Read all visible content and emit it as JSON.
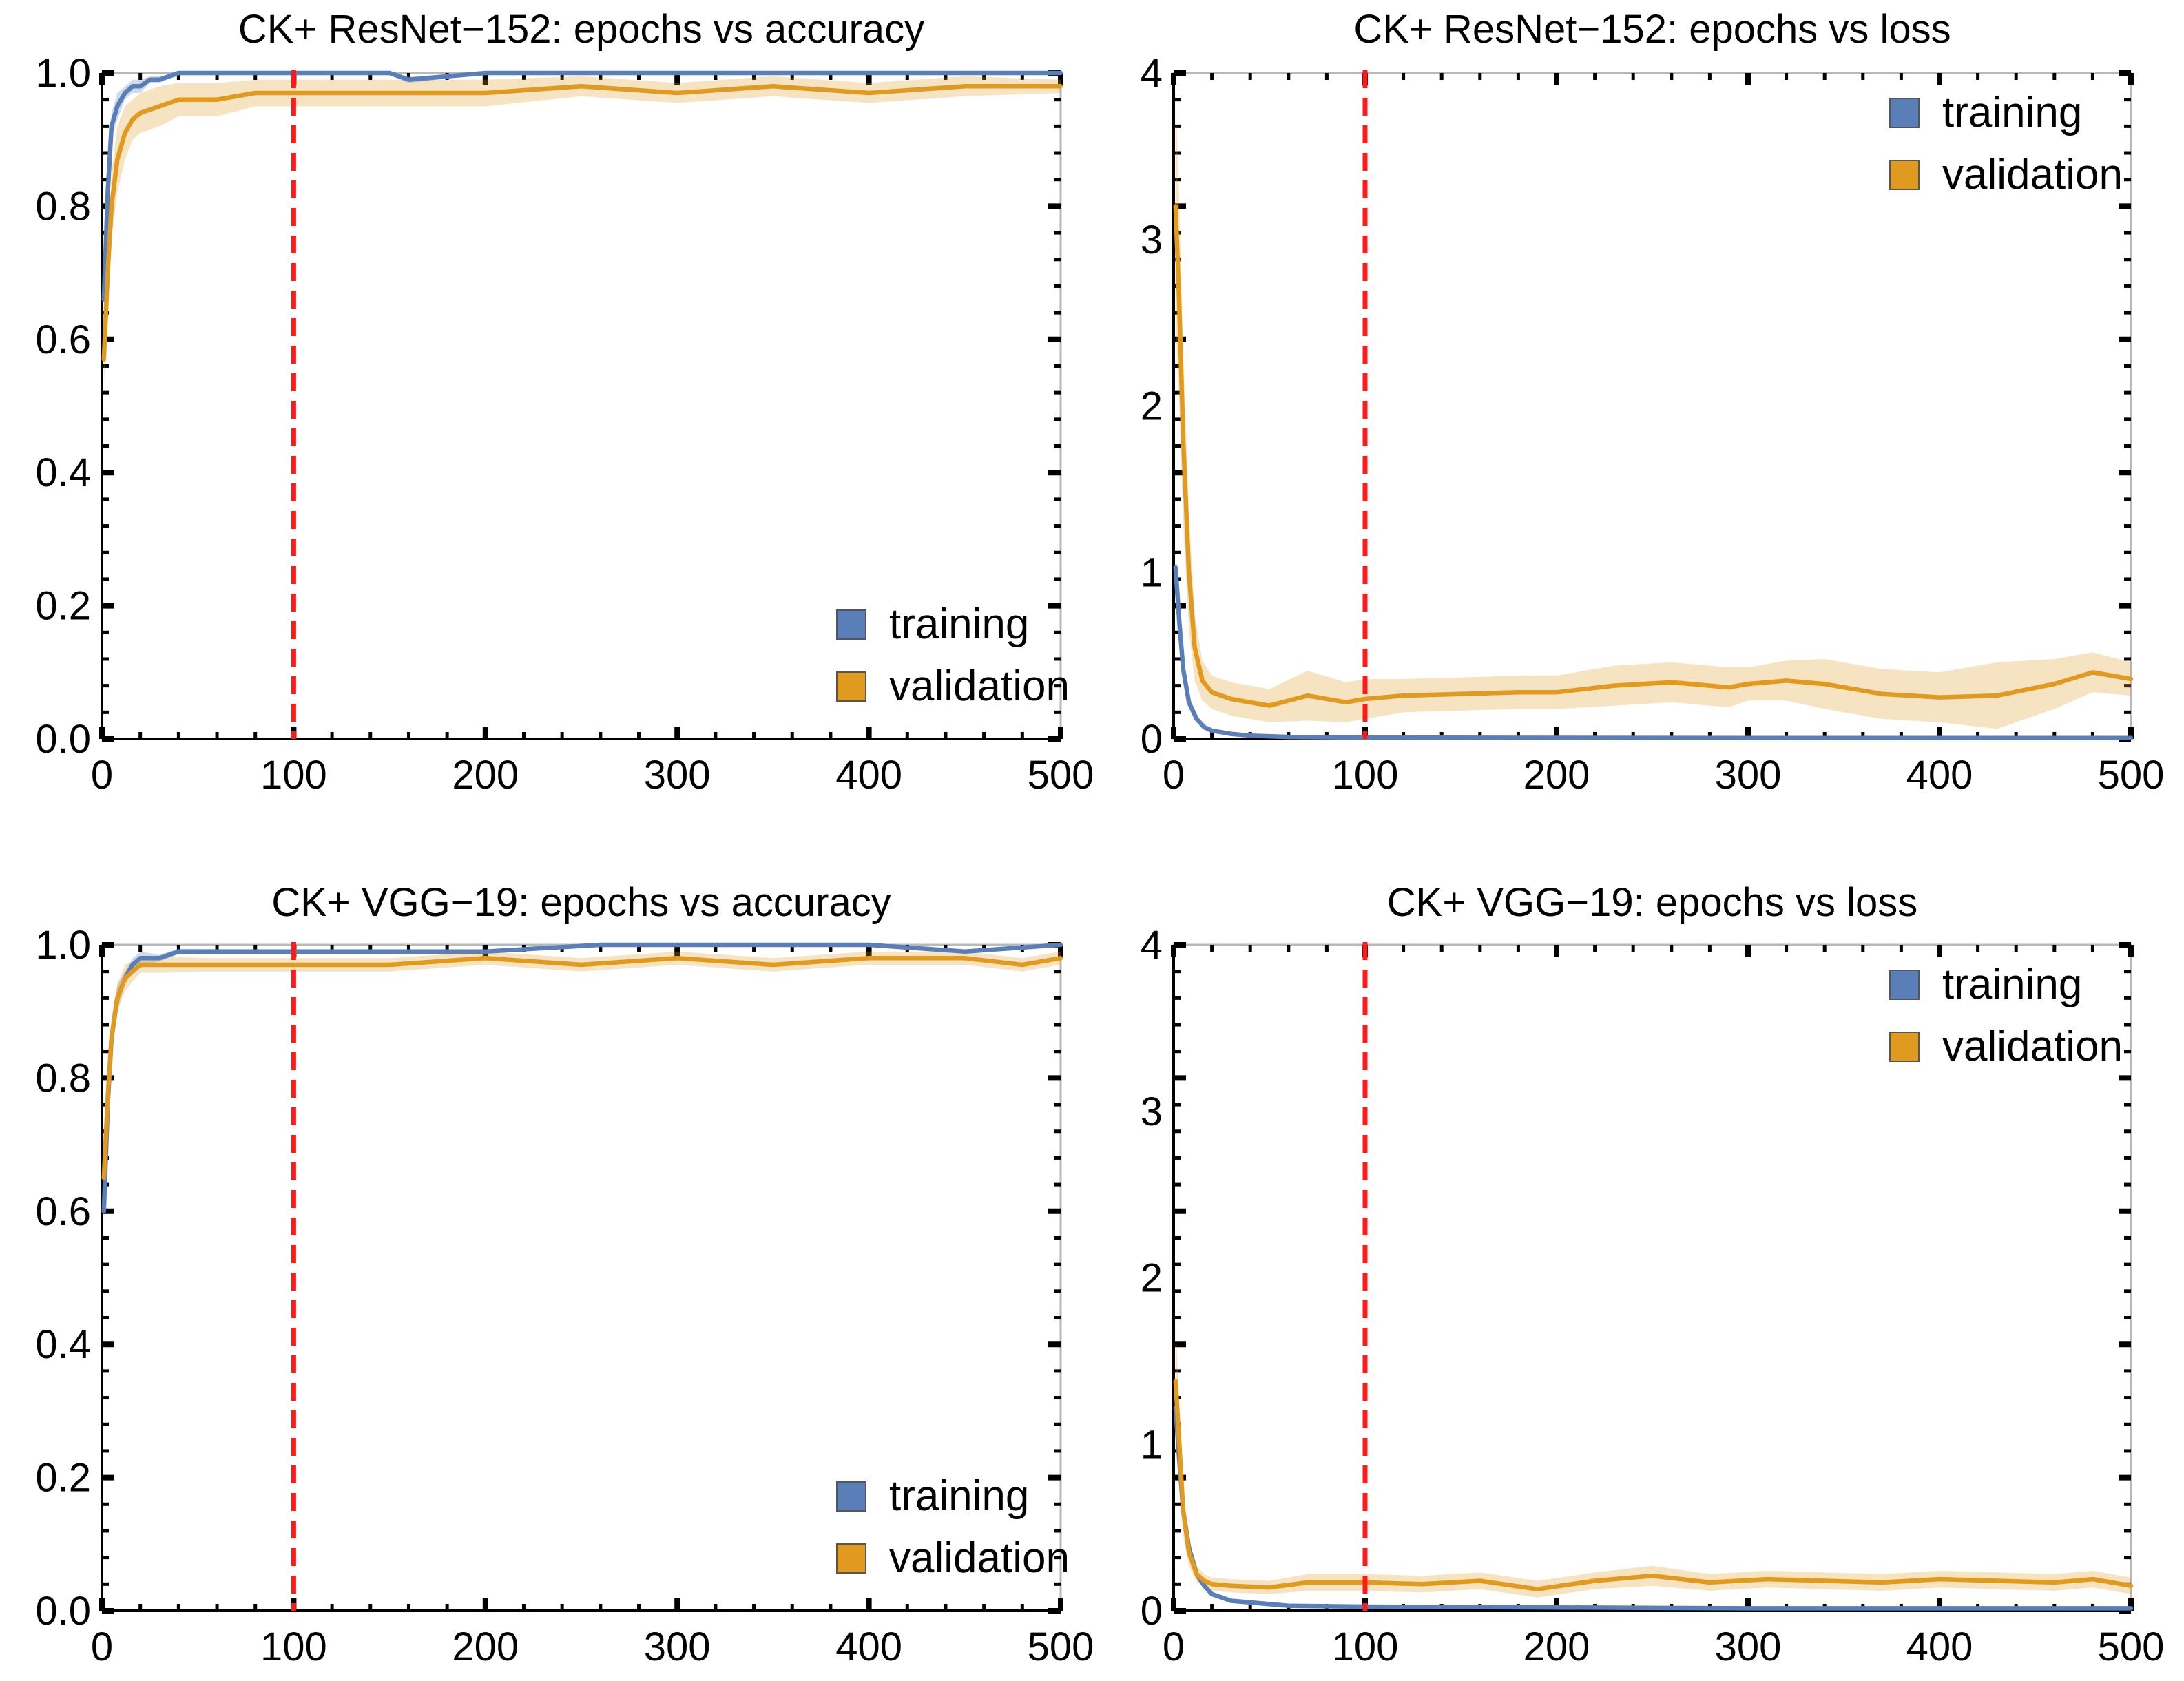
{
  "colors": {
    "training": "#5a7fb8",
    "validation": "#e09a20",
    "reference_line": "#ff1a1a"
  },
  "chart_data": [
    {
      "id": "resnet-accuracy",
      "type": "line",
      "title": "CK+ ResNet−152: epochs vs accuracy",
      "xlabel": "",
      "ylabel": "",
      "xlim": [
        0,
        500
      ],
      "ylim": [
        0,
        1
      ],
      "x_ticks": [
        0,
        100,
        200,
        300,
        400,
        500
      ],
      "y_ticks": [
        0.0,
        0.2,
        0.4,
        0.6,
        0.8,
        1.0
      ],
      "y_tick_labels": [
        "0.0",
        "0.2",
        "0.4",
        "0.6",
        "0.8",
        "1.0"
      ],
      "grid": false,
      "legend_position": "bottom-right",
      "vline_x": 100,
      "series": [
        {
          "name": "training",
          "color_key": "training",
          "x": [
            1,
            3,
            5,
            8,
            12,
            16,
            20,
            25,
            30,
            40,
            60,
            80,
            100,
            150,
            160,
            200,
            300,
            400,
            500
          ],
          "y": [
            0.66,
            0.82,
            0.92,
            0.95,
            0.97,
            0.98,
            0.98,
            0.99,
            0.99,
            1.0,
            1.0,
            1.0,
            1.0,
            1.0,
            0.99,
            1.0,
            1.0,
            1.0,
            1.0
          ],
          "band": [
            0.02,
            0.03,
            0.02,
            0.02,
            0.01,
            0.01,
            0.01,
            0.005,
            0.005,
            0.003,
            0.003,
            0.003,
            0.003,
            0.003,
            0.005,
            0.002,
            0.002,
            0.002,
            0.002
          ]
        },
        {
          "name": "validation",
          "color_key": "validation",
          "x": [
            1,
            3,
            5,
            8,
            12,
            16,
            20,
            30,
            40,
            60,
            80,
            100,
            130,
            160,
            200,
            250,
            300,
            350,
            400,
            450,
            500
          ],
          "y": [
            0.57,
            0.7,
            0.8,
            0.87,
            0.91,
            0.93,
            0.94,
            0.95,
            0.96,
            0.96,
            0.97,
            0.97,
            0.97,
            0.97,
            0.97,
            0.98,
            0.97,
            0.98,
            0.97,
            0.98,
            0.98
          ],
          "band": [
            0.04,
            0.05,
            0.05,
            0.05,
            0.04,
            0.03,
            0.03,
            0.03,
            0.025,
            0.025,
            0.02,
            0.02,
            0.02,
            0.02,
            0.02,
            0.015,
            0.015,
            0.015,
            0.015,
            0.015,
            0.01
          ]
        }
      ]
    },
    {
      "id": "resnet-loss",
      "type": "line",
      "title": "CK+ ResNet−152: epochs vs loss",
      "xlabel": "",
      "ylabel": "",
      "xlim": [
        0,
        500
      ],
      "ylim": [
        0,
        4
      ],
      "x_ticks": [
        0,
        100,
        200,
        300,
        400,
        500
      ],
      "y_ticks": [
        0,
        1,
        2,
        3,
        4
      ],
      "y_tick_labels": [
        "0",
        "1",
        "2",
        "3",
        "4"
      ],
      "grid": false,
      "legend_position": "top-right",
      "vline_x": 100,
      "series": [
        {
          "name": "training",
          "color_key": "training",
          "x": [
            1,
            3,
            5,
            8,
            12,
            16,
            20,
            30,
            40,
            60,
            100,
            200,
            300,
            400,
            500
          ],
          "y": [
            1.03,
            0.7,
            0.42,
            0.22,
            0.12,
            0.07,
            0.05,
            0.03,
            0.02,
            0.012,
            0.008,
            0.006,
            0.005,
            0.005,
            0.005
          ],
          "band": [
            0.04,
            0.04,
            0.04,
            0.03,
            0.02,
            0.01,
            0.01,
            0.005,
            0.005,
            0.003,
            0.003,
            0.002,
            0.002,
            0.002,
            0.002
          ]
        },
        {
          "name": "validation",
          "color_key": "validation",
          "x": [
            1,
            3,
            5,
            8,
            11,
            15,
            20,
            30,
            50,
            70,
            90,
            100,
            120,
            150,
            180,
            200,
            230,
            260,
            290,
            300,
            320,
            340,
            370,
            400,
            430,
            460,
            480,
            500
          ],
          "y": [
            3.2,
            2.6,
            1.8,
            1.0,
            0.55,
            0.35,
            0.28,
            0.24,
            0.2,
            0.26,
            0.22,
            0.24,
            0.26,
            0.27,
            0.28,
            0.28,
            0.32,
            0.34,
            0.31,
            0.33,
            0.35,
            0.33,
            0.27,
            0.25,
            0.26,
            0.33,
            0.4,
            0.36
          ],
          "band": [
            0.7,
            0.6,
            0.5,
            0.35,
            0.2,
            0.12,
            0.1,
            0.1,
            0.1,
            0.15,
            0.12,
            0.12,
            0.1,
            0.1,
            0.1,
            0.1,
            0.12,
            0.12,
            0.12,
            0.1,
            0.12,
            0.15,
            0.15,
            0.15,
            0.2,
            0.15,
            0.12,
            0.1
          ]
        }
      ]
    },
    {
      "id": "vgg-accuracy",
      "type": "line",
      "title": "CK+ VGG−19: epochs vs accuracy",
      "xlabel": "",
      "ylabel": "",
      "xlim": [
        0,
        500
      ],
      "ylim": [
        0,
        1
      ],
      "x_ticks": [
        0,
        100,
        200,
        300,
        400,
        500
      ],
      "y_ticks": [
        0.0,
        0.2,
        0.4,
        0.6,
        0.8,
        1.0
      ],
      "y_tick_labels": [
        "0.0",
        "0.2",
        "0.4",
        "0.6",
        "0.8",
        "1.0"
      ],
      "grid": false,
      "legend_position": "bottom-right",
      "vline_x": 100,
      "series": [
        {
          "name": "training",
          "color_key": "training",
          "x": [
            1,
            3,
            5,
            8,
            12,
            16,
            20,
            30,
            40,
            100,
            200,
            260,
            300,
            400,
            450,
            500
          ],
          "y": [
            0.6,
            0.76,
            0.86,
            0.92,
            0.95,
            0.97,
            0.98,
            0.98,
            0.99,
            0.99,
            0.99,
            1.0,
            1.0,
            1.0,
            0.99,
            1.0
          ],
          "band": [
            0.02,
            0.03,
            0.02,
            0.02,
            0.01,
            0.01,
            0.01,
            0.005,
            0.004,
            0.003,
            0.003,
            0.002,
            0.002,
            0.002,
            0.003,
            0.002
          ]
        },
        {
          "name": "validation",
          "color_key": "validation",
          "x": [
            1,
            3,
            5,
            8,
            12,
            16,
            20,
            30,
            60,
            100,
            150,
            200,
            250,
            300,
            350,
            400,
            450,
            480,
            500
          ],
          "y": [
            0.65,
            0.77,
            0.86,
            0.92,
            0.95,
            0.96,
            0.97,
            0.97,
            0.97,
            0.97,
            0.97,
            0.98,
            0.97,
            0.98,
            0.97,
            0.98,
            0.98,
            0.97,
            0.98
          ],
          "band": [
            0.03,
            0.03,
            0.03,
            0.02,
            0.02,
            0.015,
            0.012,
            0.012,
            0.01,
            0.01,
            0.01,
            0.01,
            0.01,
            0.01,
            0.01,
            0.01,
            0.01,
            0.01,
            0.01
          ]
        }
      ]
    },
    {
      "id": "vgg-loss",
      "type": "line",
      "title": "CK+ VGG−19: epochs vs loss",
      "xlabel": "",
      "ylabel": "",
      "xlim": [
        0,
        500
      ],
      "ylim": [
        0,
        4
      ],
      "x_ticks": [
        0,
        100,
        200,
        300,
        400,
        500
      ],
      "y_ticks": [
        0,
        1,
        2,
        3,
        4
      ],
      "y_tick_labels": [
        "0",
        "1",
        "2",
        "3",
        "4"
      ],
      "grid": false,
      "legend_position": "top-right",
      "vline_x": 100,
      "series": [
        {
          "name": "training",
          "color_key": "training",
          "x": [
            1,
            3,
            5,
            8,
            12,
            16,
            20,
            30,
            40,
            60,
            100,
            200,
            300,
            400,
            500
          ],
          "y": [
            1.22,
            0.9,
            0.6,
            0.38,
            0.22,
            0.15,
            0.1,
            0.06,
            0.05,
            0.03,
            0.025,
            0.02,
            0.015,
            0.015,
            0.015
          ],
          "band": [
            0.05,
            0.05,
            0.04,
            0.03,
            0.02,
            0.015,
            0.01,
            0.005,
            0.005,
            0.004,
            0.003,
            0.003,
            0.003,
            0.003,
            0.003
          ]
        },
        {
          "name": "validation",
          "color_key": "validation",
          "x": [
            1,
            3,
            5,
            8,
            12,
            16,
            20,
            30,
            50,
            70,
            100,
            130,
            160,
            190,
            220,
            250,
            280,
            310,
            340,
            370,
            400,
            430,
            460,
            480,
            500
          ],
          "y": [
            1.38,
            1.0,
            0.6,
            0.35,
            0.22,
            0.18,
            0.16,
            0.15,
            0.14,
            0.17,
            0.17,
            0.16,
            0.18,
            0.13,
            0.18,
            0.21,
            0.17,
            0.19,
            0.18,
            0.17,
            0.19,
            0.18,
            0.17,
            0.19,
            0.15
          ],
          "band": [
            0.35,
            0.25,
            0.15,
            0.08,
            0.05,
            0.04,
            0.04,
            0.04,
            0.04,
            0.05,
            0.05,
            0.05,
            0.05,
            0.05,
            0.05,
            0.06,
            0.05,
            0.05,
            0.05,
            0.05,
            0.05,
            0.05,
            0.05,
            0.05,
            0.05
          ]
        }
      ]
    }
  ]
}
